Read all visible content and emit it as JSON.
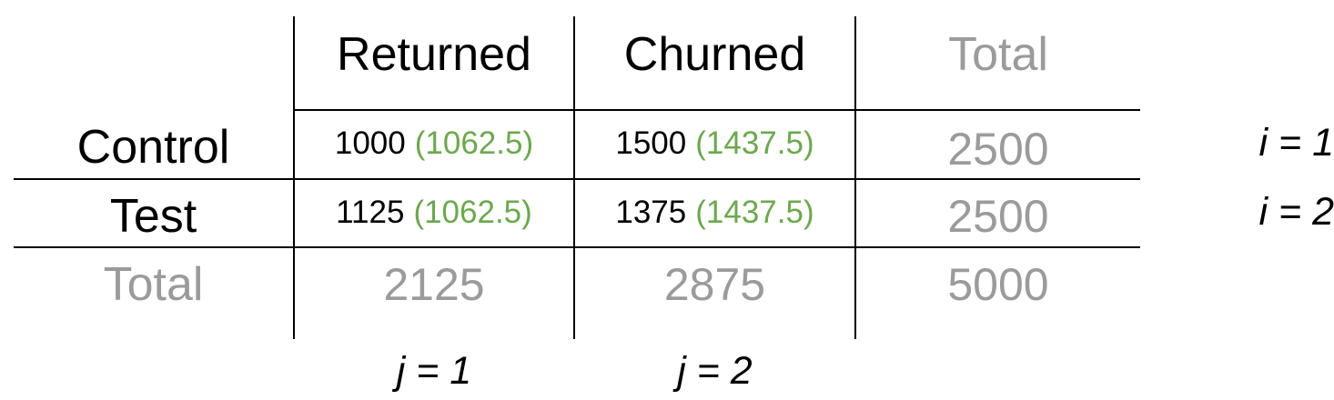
{
  "colors": {
    "text": "#000000",
    "muted": "#9b9b9b",
    "expected": "#6aaa4a"
  },
  "header": {
    "returned": "Returned",
    "churned": "Churned",
    "total": "Total"
  },
  "rows": {
    "control": {
      "label": "Control",
      "returned_observed": "1000",
      "returned_expected": "(1062.5)",
      "churned_observed": "1500",
      "churned_expected": "(1437.5)",
      "total": "2500",
      "index": "i = 1"
    },
    "test": {
      "label": "Test",
      "returned_observed": "1125",
      "returned_expected": "(1062.5)",
      "churned_observed": "1375",
      "churned_expected": "(1437.5)",
      "total": "2500",
      "index": "i = 2"
    },
    "total": {
      "label": "Total",
      "returned": "2125",
      "churned": "2875",
      "grand": "5000"
    }
  },
  "columns": {
    "returned_index": "j = 1",
    "churned_index": "j = 2"
  }
}
